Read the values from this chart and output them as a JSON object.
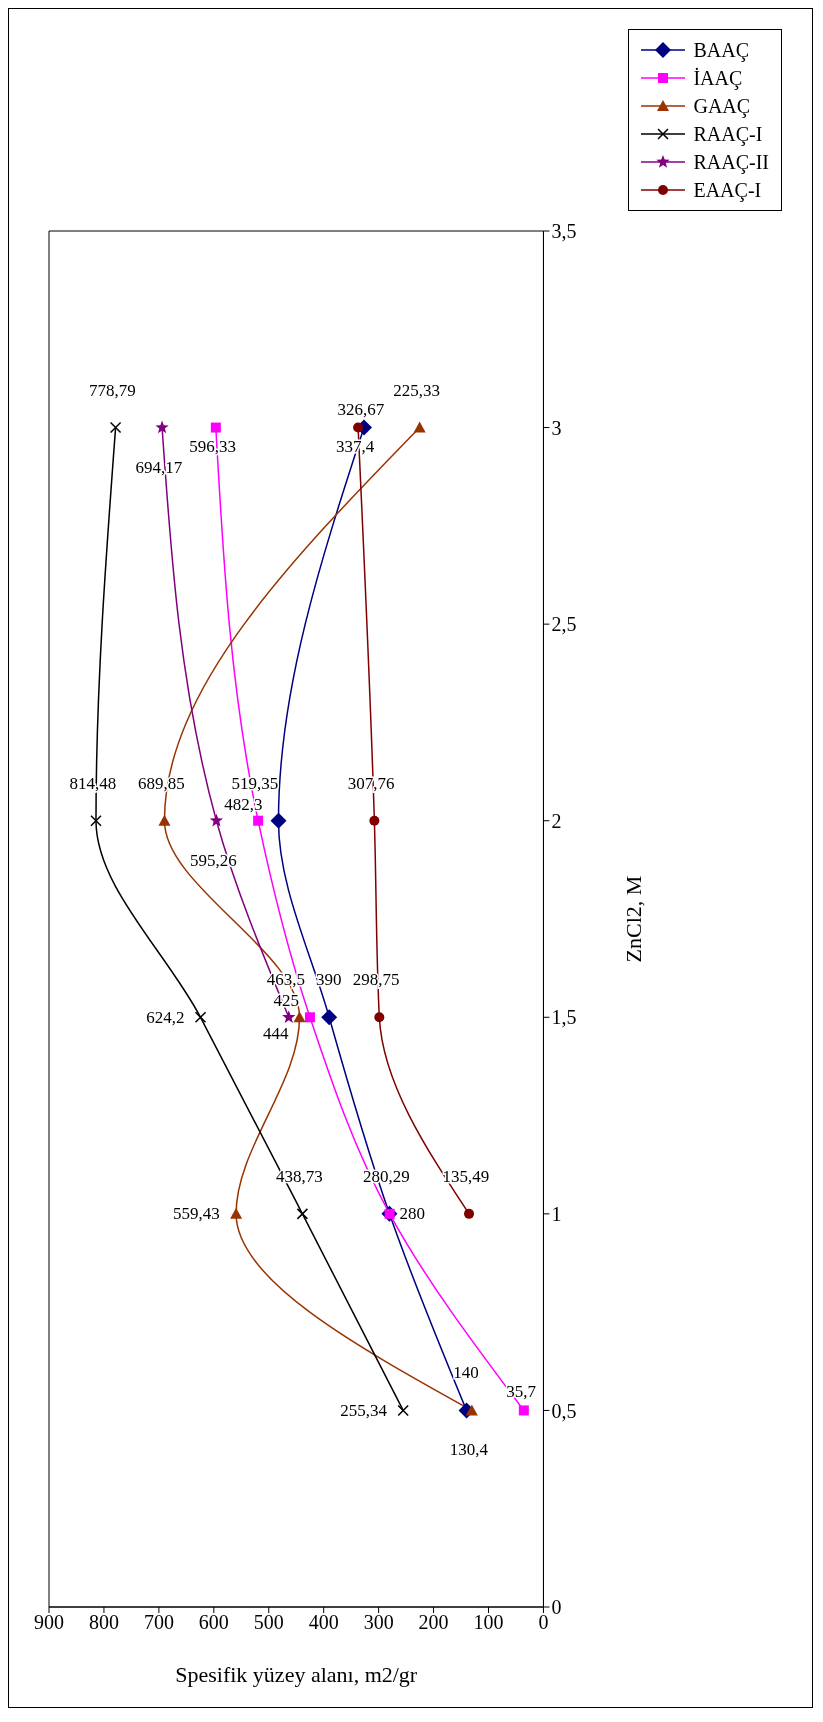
{
  "chart_data": {
    "type": "line",
    "xlabel": "Spesifik yüzey alanı, m2/gr",
    "ylabel": "ZnCl2, M",
    "xlim": [
      900,
      0
    ],
    "xticks": [
      900,
      800,
      700,
      600,
      500,
      400,
      300,
      200,
      100,
      0
    ],
    "ylim": [
      0,
      3.5
    ],
    "yticks": [
      0,
      {
        "value": 0.5,
        "label": "0,5"
      },
      1,
      {
        "value": 1.5,
        "label": "1,5"
      },
      2,
      {
        "value": 2.5,
        "label": "2,5"
      },
      3,
      {
        "value": 3.5,
        "label": "3,5"
      }
    ],
    "legend": "top right",
    "line_style": "solid",
    "series": [
      {
        "name": "BAAÇ",
        "color": "#000080",
        "marker": "diamond",
        "x": [
          140,
          280.29,
          390,
          482.3,
          326.67
        ],
        "values": [
          0.5,
          1,
          1.5,
          2,
          3
        ]
      },
      {
        "name": "İAAÇ",
        "color": "#ff00ff",
        "marker": "square",
        "x": [
          35.7,
          280,
          425,
          519.35,
          596.33
        ],
        "values": [
          0.5,
          1,
          1.5,
          2,
          3
        ]
      },
      {
        "name": "GAAÇ",
        "color": "#993300",
        "marker": "triangle",
        "x": [
          130.4,
          559.43,
          444,
          689.85,
          225.33
        ],
        "values": [
          0.5,
          1,
          1.5,
          2,
          3
        ]
      },
      {
        "name": "RAAÇ-I",
        "color": "#000000",
        "marker": "cross",
        "x": [
          255.34,
          438.73,
          624.2,
          814.48,
          778.79
        ],
        "values": [
          0.5,
          1,
          1.5,
          2,
          3
        ]
      },
      {
        "name": "RAAÇ-II",
        "color": "#800080",
        "marker": "star",
        "x": [
          463.5,
          595.26,
          694.17
        ],
        "values": [
          1.5,
          2,
          3
        ]
      },
      {
        "name": "EAAÇ-I",
        "color": "#800000",
        "marker": "circle",
        "x": [
          135.49,
          298.75,
          307.76,
          337.4
        ],
        "values": [
          1,
          1.5,
          2,
          3
        ]
      }
    ],
    "annotations": [
      {
        "text": "140",
        "x": 140,
        "y": 0.5
      },
      {
        "text": "280,29",
        "x": 280.29,
        "y": 1
      },
      {
        "text": "390",
        "x": 390,
        "y": 1.5
      },
      {
        "text": "482,3",
        "x": 482.3,
        "y": 2
      },
      {
        "text": "326,67",
        "x": 326.67,
        "y": 3
      },
      {
        "text": "35,7",
        "x": 35.7,
        "y": 0.5
      },
      {
        "text": "280",
        "x": 280,
        "y": 1
      },
      {
        "text": "425",
        "x": 425,
        "y": 1.5
      },
      {
        "text": "519,35",
        "x": 519.35,
        "y": 2
      },
      {
        "text": "596,33",
        "x": 596.33,
        "y": 3
      },
      {
        "text": "130,4",
        "x": 130.4,
        "y": 0.5
      },
      {
        "text": "559,43",
        "x": 559.43,
        "y": 1
      },
      {
        "text": "444",
        "x": 444,
        "y": 1.5
      },
      {
        "text": "689,85",
        "x": 689.85,
        "y": 2
      },
      {
        "text": "225,33",
        "x": 225.33,
        "y": 3
      },
      {
        "text": "255,34",
        "x": 255.34,
        "y": 0.5
      },
      {
        "text": "438,73",
        "x": 438.73,
        "y": 1
      },
      {
        "text": "624,2",
        "x": 624.2,
        "y": 1.5
      },
      {
        "text": "814,48",
        "x": 814.48,
        "y": 2
      },
      {
        "text": "778,79",
        "x": 778.79,
        "y": 3
      },
      {
        "text": "463,5",
        "x": 463.5,
        "y": 1.5
      },
      {
        "text": "595,26",
        "x": 595.26,
        "y": 2
      },
      {
        "text": "694,17",
        "x": 694.17,
        "y": 3
      },
      {
        "text": "135,49",
        "x": 135.49,
        "y": 1
      },
      {
        "text": "298,75",
        "x": 298.75,
        "y": 1.5
      },
      {
        "text": "307,76",
        "x": 307.76,
        "y": 2
      },
      {
        "text": "337,4",
        "x": 337.4,
        "y": 3
      }
    ]
  }
}
